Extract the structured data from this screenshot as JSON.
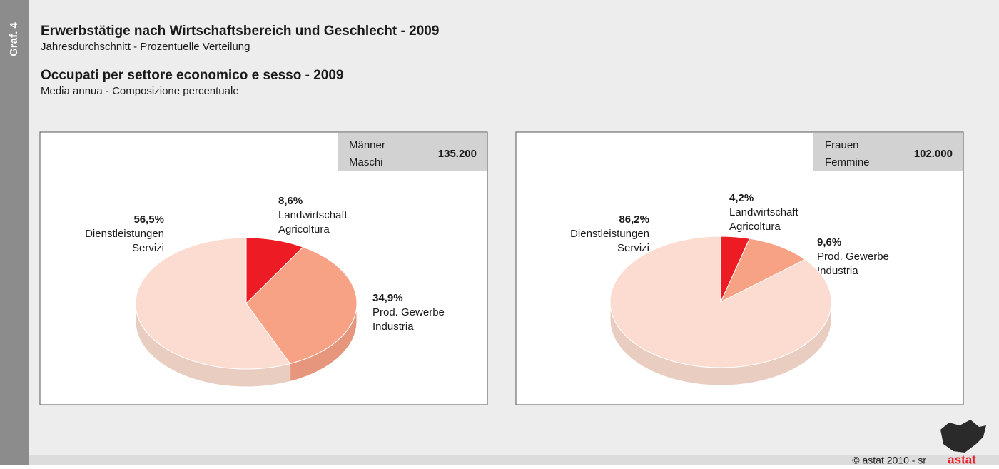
{
  "side_label": "Graf. 4",
  "title_de": "Erwerbstätige nach Wirtschaftsbereich und Geschlecht - 2009",
  "subtitle_de": "Jahresdurchschnitt - Prozentuelle Verteilung",
  "title_it": "Occupati per settore economico e sesso - 2009",
  "subtitle_it": "Media annua - Composizione percentuale",
  "footer": "© astat 2010 - sr",
  "logo": "astat",
  "chart_data": [
    {
      "type": "pie",
      "label_de": "Männer",
      "label_it": "Maschi",
      "total": {
        "value": 135200,
        "label": "135.200"
      },
      "categories": [
        "Landwirtschaft",
        "Prod. Gewerbe",
        "Dienstleistungen"
      ],
      "categories_it": [
        "Agricoltura",
        "Industria",
        "Servizi"
      ],
      "values": [
        8.6,
        34.9,
        56.5
      ],
      "value_labels": [
        "8,6%",
        "34,9%",
        "56,5%"
      ],
      "colors": [
        "#ed1c24",
        "#f7a185",
        "#fcdcd0"
      ]
    },
    {
      "type": "pie",
      "label_de": "Frauen",
      "label_it": "Femmine",
      "total": {
        "value": 102000,
        "label": "102.000"
      },
      "categories": [
        "Landwirtschaft",
        "Prod. Gewerbe",
        "Dienstleistungen"
      ],
      "categories_it": [
        "Agricoltura",
        "Industria",
        "Servizi"
      ],
      "values": [
        4.2,
        9.6,
        86.2
      ],
      "value_labels": [
        "4,2%",
        "9,6%",
        "86,2%"
      ],
      "colors": [
        "#ed1c24",
        "#f7a185",
        "#fcdcd0"
      ]
    }
  ]
}
